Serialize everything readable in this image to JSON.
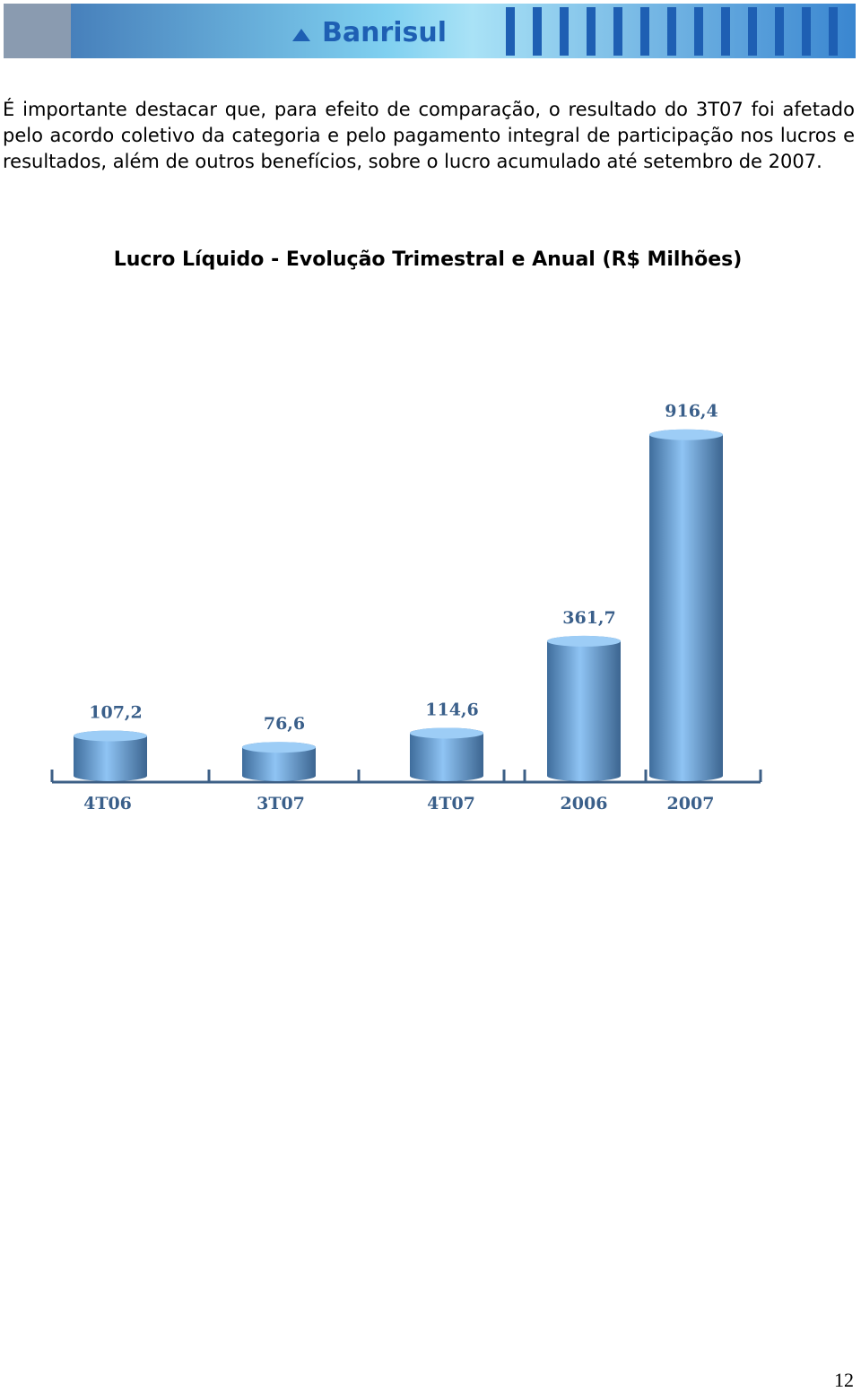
{
  "header": {
    "logo": "Banrisul"
  },
  "paragraph": "É importante destacar que, para efeito de comparação, o resultado do 3T07 foi afetado pelo acordo coletivo da categoria e pelo pagamento integral de participação nos lucros e resultados, além de outros benefícios, sobre o lucro acumulado até setembro de 2007.",
  "chart_data": {
    "type": "bar",
    "title": "Lucro Líquido - Evolução Trimestral e Anual (R$ Milhões)",
    "categories": [
      "4T06",
      "3T07",
      "4T07",
      "2006",
      "2007"
    ],
    "values": [
      107.2,
      76.6,
      114.6,
      361.7,
      916.4
    ],
    "value_labels": [
      "107,2",
      "76,6",
      "114,6",
      "361,7",
      "916,4"
    ],
    "color": "#6b9fd6"
  },
  "page_number": "12"
}
